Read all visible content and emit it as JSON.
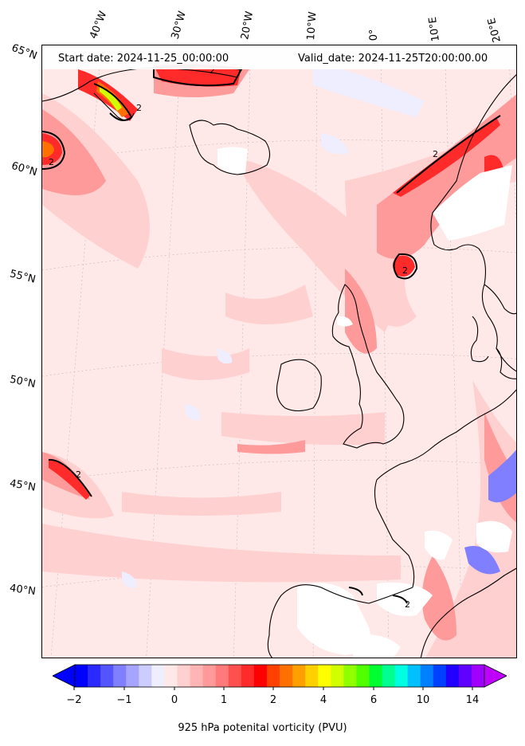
{
  "header": {
    "start_date": "Start date: 2024-11-25_00:00:00",
    "valid_date": "Valid_date: 2024-11-25T20:00:00.00"
  },
  "lon_labels": [
    "40°W",
    "30°W",
    "20°W",
    "10°W",
    "0°",
    "10°E",
    "20°E"
  ],
  "lat_labels": [
    "65°N",
    "60°N",
    "55°N",
    "50°N",
    "45°N",
    "40°N"
  ],
  "contour_label": "2",
  "colorbar": {
    "label": "925 hPa potenital vorticity (PVU)",
    "ticks": [
      "−2",
      "−1",
      "0",
      "1",
      "2",
      "4",
      "6",
      "10",
      "14"
    ],
    "colors": [
      "#0000ff",
      "#2a2aff",
      "#5555ff",
      "#7f7fff",
      "#a5a5ff",
      "#ccccff",
      "#eeeeff",
      "#ffe8e8",
      "#ffd0d0",
      "#ffb5b5",
      "#ff9a9a",
      "#ff7a7a",
      "#ff5050",
      "#ff2a2a",
      "#ff0000",
      "#ff4000",
      "#ff7000",
      "#ff9f00",
      "#ffcf00",
      "#ffff00",
      "#cfff00",
      "#90ff00",
      "#50ff00",
      "#00ff30",
      "#00ff90",
      "#00ffe0",
      "#00c0ff",
      "#0080ff",
      "#0040ff",
      "#2000ff",
      "#6000ff",
      "#a000ff"
    ],
    "under_color": "#0000ff",
    "over_color": "#c000ff"
  },
  "colors": {
    "ocean_background": "#ffe8e8",
    "coastline": "#000000",
    "high_pv": "#ff0000",
    "negative_pv": "#eeeeff"
  }
}
